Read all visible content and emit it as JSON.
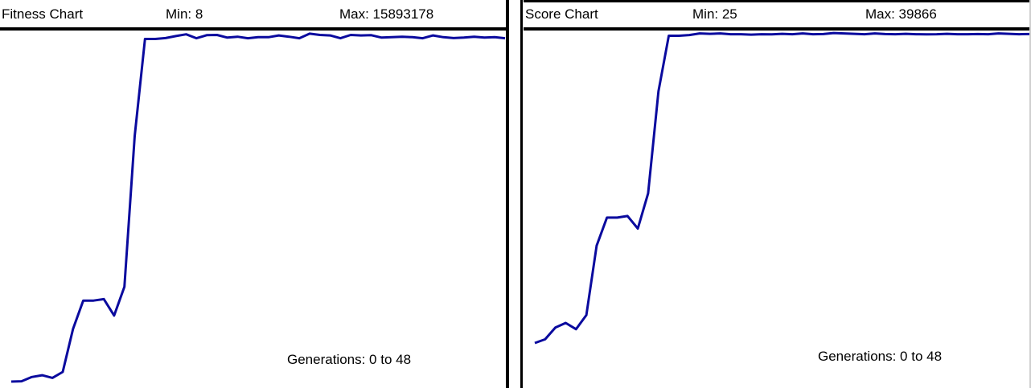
{
  "charts": {
    "fitness": {
      "title": "Fitness Chart",
      "min_label": "Min: 8",
      "max_label": "Max: 15893178",
      "generations_label": "Generations: 0 to 48"
    },
    "score": {
      "title": "Score Chart",
      "min_label": "Min: 25",
      "max_label": "Max: 39866",
      "generations_label": "Generations: 0 to 48"
    }
  },
  "colors": {
    "line": "#0a0a9e",
    "border": "#000000",
    "background": "#ffffff"
  },
  "chart_data": [
    {
      "type": "line",
      "title": "Fitness Chart",
      "xlabel": "Generations: 0 to 48",
      "ylabel": "",
      "x": [
        0,
        1,
        2,
        3,
        4,
        5,
        6,
        7,
        8,
        9,
        10,
        11,
        12,
        13,
        14,
        15,
        16,
        17,
        18,
        19,
        20,
        21,
        22,
        23,
        24,
        25,
        26,
        27,
        28,
        29,
        30,
        31,
        32,
        33,
        34,
        35,
        36,
        37,
        38,
        39,
        40,
        41,
        42,
        43,
        44,
        45,
        46,
        47,
        48
      ],
      "xlim": [
        0,
        48
      ],
      "ylim": [
        8,
        15893178
      ],
      "series": [
        {
          "values": [
            8,
            13000,
            210000,
            290000,
            170000,
            440000,
            2400000,
            3690000,
            3690000,
            3760000,
            3010000,
            4320000,
            11200000,
            15620000,
            15620000,
            15660000,
            15750000,
            15830000,
            15650000,
            15790000,
            15800000,
            15680000,
            15720000,
            15650000,
            15700000,
            15700000,
            15780000,
            15720000,
            15650000,
            15860000,
            15800000,
            15780000,
            15650000,
            15800000,
            15780000,
            15790000,
            15680000,
            15700000,
            15720000,
            15700000,
            15650000,
            15780000,
            15700000,
            15660000,
            15680000,
            15720000,
            15680000,
            15700000,
            15650000
          ]
        }
      ],
      "grid": false,
      "legend": "none"
    },
    {
      "type": "line",
      "title": "Score Chart",
      "xlabel": "Generations: 0 to 48",
      "ylabel": "",
      "x": [
        0,
        1,
        2,
        3,
        4,
        5,
        6,
        7,
        8,
        9,
        10,
        11,
        12,
        13,
        14,
        15,
        16,
        17,
        18,
        19,
        20,
        21,
        22,
        23,
        24,
        25,
        26,
        27,
        28,
        29,
        30,
        31,
        32,
        33,
        34,
        35,
        36,
        37,
        38,
        39,
        40,
        41,
        42,
        43,
        44,
        45,
        46,
        47,
        48
      ],
      "xlim": [
        0,
        48
      ],
      "ylim": [
        25,
        39866
      ],
      "series": [
        {
          "values": [
            25,
            500,
            2000,
            2600,
            1800,
            3600,
            12500,
            16100,
            16100,
            16300,
            14700,
            19200,
            32300,
            39400,
            39400,
            39500,
            39700,
            39650,
            39700,
            39600,
            39600,
            39550,
            39600,
            39580,
            39650,
            39600,
            39700,
            39600,
            39620,
            39750,
            39700,
            39650,
            39600,
            39700,
            39620,
            39600,
            39650,
            39600,
            39580,
            39600,
            39650,
            39600,
            39600,
            39620,
            39600,
            39700,
            39650,
            39600,
            39620
          ]
        }
      ],
      "grid": false,
      "legend": "none"
    }
  ]
}
